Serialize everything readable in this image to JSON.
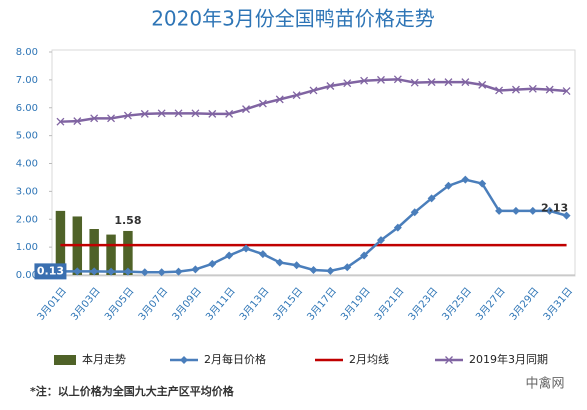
{
  "chart_data": {
    "type": "combo",
    "title": "2020年3月份全国鸭苗价格走势",
    "categories": [
      "3月01日",
      null,
      "3月03日",
      null,
      "3月05日",
      null,
      "3月07日",
      null,
      "3月09日",
      null,
      "3月11日",
      null,
      "3月13日",
      null,
      "3月15日",
      null,
      "3月17日",
      null,
      "3月19日",
      null,
      "3月21日",
      null,
      "3月23日",
      null,
      "3月25日",
      null,
      "3月27日",
      null,
      "3月29日",
      null,
      "3月31日"
    ],
    "series": [
      {
        "name": "本月走势",
        "kind": "bar",
        "color": "#4f6228",
        "values": [
          2.3,
          2.1,
          1.65,
          1.45,
          1.58,
          null,
          null,
          null,
          null,
          null,
          null,
          null,
          null,
          null,
          null,
          null,
          null,
          null,
          null,
          null,
          null,
          null,
          null,
          null,
          null,
          null,
          null,
          null,
          null,
          null,
          null
        ],
        "value_labels": [
          null,
          null,
          null,
          null,
          "1.58",
          null,
          null,
          null,
          null,
          null,
          null,
          null,
          null,
          null,
          null,
          null,
          null,
          null,
          null,
          null,
          null,
          null,
          null,
          null,
          null,
          null,
          null,
          null,
          null,
          null,
          null
        ]
      },
      {
        "name": "2月每日价格",
        "kind": "line-diamond",
        "color": "#4a7ebb",
        "values": [
          0.13,
          0.13,
          0.13,
          0.12,
          0.12,
          0.1,
          0.1,
          0.12,
          0.2,
          0.4,
          0.7,
          0.95,
          0.75,
          0.45,
          0.35,
          0.18,
          0.15,
          0.28,
          0.7,
          1.25,
          1.7,
          2.25,
          2.75,
          3.2,
          3.42,
          3.28,
          2.3,
          2.3,
          2.3,
          2.3,
          2.13
        ],
        "value_labels": [
          "0.13",
          null,
          null,
          null,
          null,
          null,
          null,
          null,
          null,
          null,
          null,
          null,
          null,
          null,
          null,
          null,
          null,
          null,
          null,
          null,
          null,
          null,
          null,
          null,
          null,
          null,
          null,
          null,
          null,
          null,
          "2.13"
        ]
      },
      {
        "name": "2月均线",
        "kind": "line",
        "color": "#c00000",
        "values": [
          1.07,
          1.07,
          1.07,
          1.07,
          1.07,
          1.07,
          1.07,
          1.07,
          1.07,
          1.07,
          1.07,
          1.07,
          1.07,
          1.07,
          1.07,
          1.07,
          1.07,
          1.07,
          1.07,
          1.07,
          1.07,
          1.07,
          1.07,
          1.07,
          1.07,
          1.07,
          1.07,
          1.07,
          1.07,
          1.07,
          1.07
        ]
      },
      {
        "name": "2019年3月同期",
        "kind": "line-x",
        "color": "#8064a2",
        "values": [
          5.5,
          5.52,
          5.62,
          5.62,
          5.72,
          5.78,
          5.8,
          5.8,
          5.8,
          5.78,
          5.78,
          5.95,
          6.15,
          6.3,
          6.45,
          6.62,
          6.78,
          6.88,
          6.97,
          7.0,
          7.02,
          6.9,
          6.92,
          6.92,
          6.92,
          6.82,
          6.62,
          6.65,
          6.68,
          6.65,
          6.6
        ]
      }
    ],
    "ylim": [
      0,
      8
    ],
    "yticks": [
      {
        "value": 0,
        "label": "0.00"
      },
      {
        "value": 1,
        "label": "1.00"
      },
      {
        "value": 2,
        "label": "2.00"
      },
      {
        "value": 3,
        "label": "3.00"
      },
      {
        "value": 4,
        "label": "4.00"
      },
      {
        "value": 5,
        "label": "5.00"
      },
      {
        "value": 6,
        "label": "6.00"
      },
      {
        "value": 7,
        "label": "7.00"
      },
      {
        "value": 8,
        "label": "8.00"
      }
    ],
    "grid": false,
    "legend": "bottom",
    "note": "*注：以上价格为全国九大主产区平均价格",
    "watermark": "中禽网"
  }
}
